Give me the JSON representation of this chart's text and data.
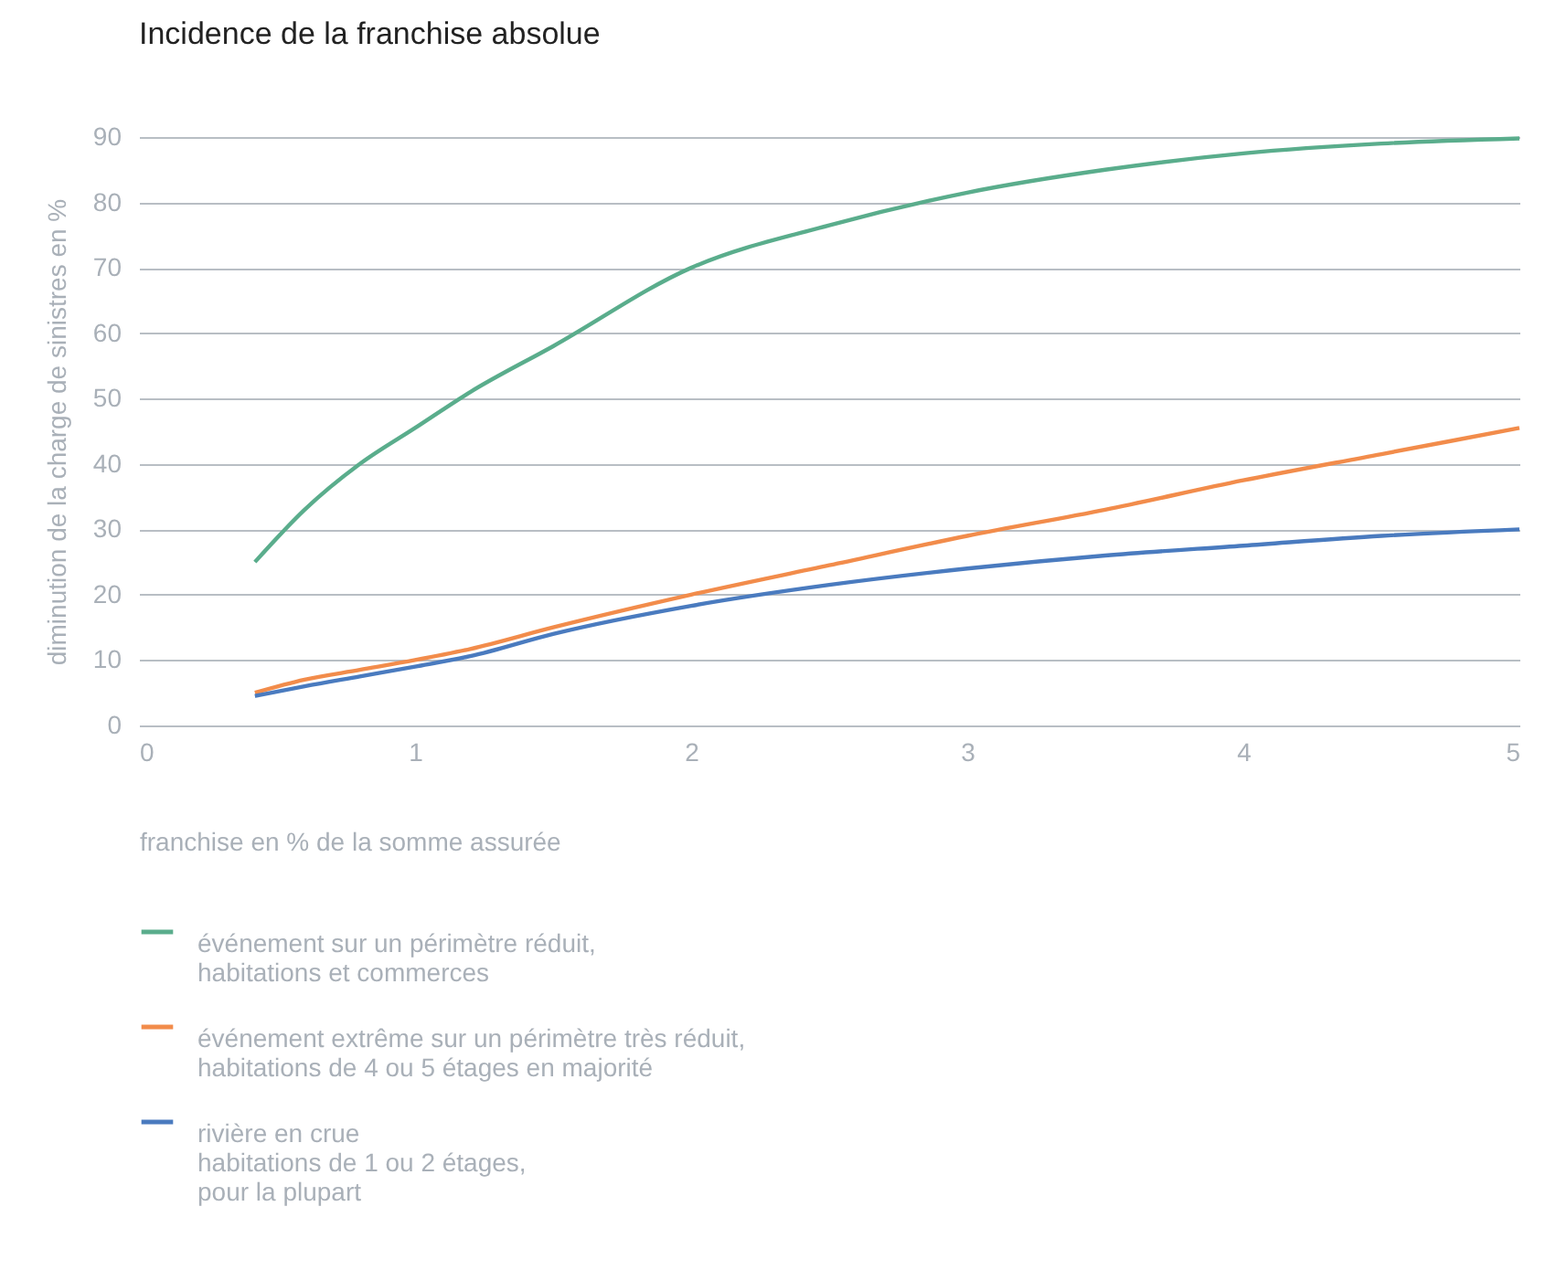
{
  "chart_data": {
    "type": "line",
    "title": "Incidence de la franchise absolue",
    "xlabel": "franchise en % de la somme assurée",
    "ylabel": "diminution de la charge de sinistres en %",
    "x": [
      0.42,
      0.6,
      0.8,
      1,
      1.2,
      1.5,
      2,
      2.5,
      3,
      3.5,
      4,
      4.5,
      5
    ],
    "series": [
      {
        "name": "événement sur un périmètre réduit,\nhabitations et commerces",
        "color": "#5aad8c",
        "values": [
          25,
          33,
          40,
          45.5,
          51,
          58,
          70,
          76.5,
          81.5,
          85,
          87.5,
          89,
          89.8
        ]
      },
      {
        "name": "événement extrême sur un périmètre très réduit,\nhabitations de 4 ou 5 étages en majorité",
        "color": "#f28c4b",
        "values": [
          5,
          7,
          8.5,
          10,
          11.7,
          15,
          20,
          24.5,
          29,
          33,
          37.5,
          41.5,
          45.5
        ]
      },
      {
        "name": "rivière en crue\nhabitations de 1 ou 2 étages,\npour la plupart",
        "color": "#4a7bbf",
        "values": [
          4.5,
          6,
          7.5,
          9,
          10.6,
          14,
          18.3,
          21.5,
          24,
          26,
          27.5,
          29,
          30
        ]
      }
    ],
    "xlim": [
      0,
      5
    ],
    "xticks": [
      0,
      1,
      2,
      3,
      4,
      5
    ],
    "ylim": [
      0,
      90
    ],
    "yticks": [
      0,
      10,
      20,
      30,
      40,
      50,
      60,
      70,
      80,
      90
    ],
    "grid": "y",
    "legend": "bottom",
    "marker": "none",
    "line_style": "solid"
  }
}
